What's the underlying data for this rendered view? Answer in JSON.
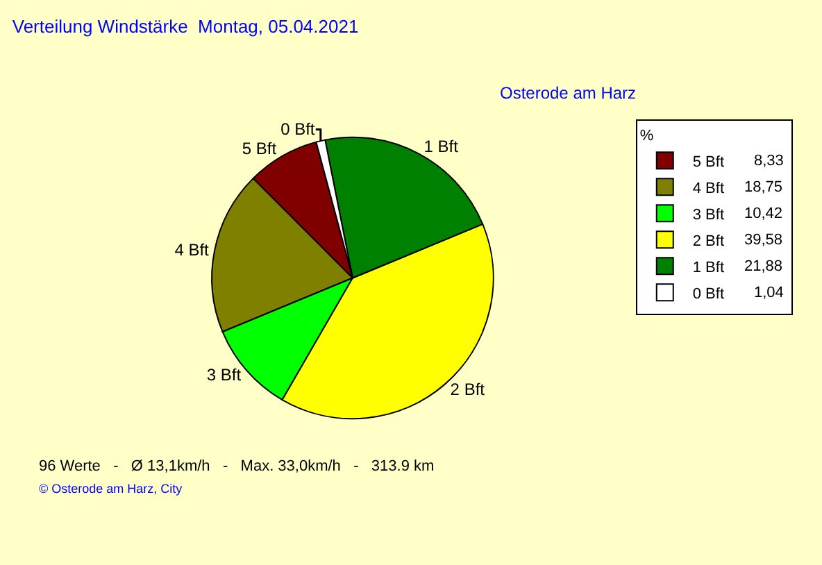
{
  "chart_data": {
    "type": "pie",
    "title": "Verteilung Windstärke  Montag, 05.04.2021",
    "subtitle": "Osterode am Harz",
    "legend_title": "%",
    "categories": [
      "5 Bft",
      "4 Bft",
      "3 Bft",
      "2 Bft",
      "1 Bft",
      "0 Bft"
    ],
    "values": [
      8.33,
      18.75,
      10.42,
      39.58,
      21.88,
      1.04
    ],
    "value_labels": [
      "8,33",
      "18,75",
      "10,42",
      "39,58",
      "21,88",
      "1,04"
    ],
    "colors": [
      "#800000",
      "#808000",
      "#00ff00",
      "#ffff00",
      "#008000",
      "#ffffff"
    ],
    "legend": "top right",
    "annotations": [
      "96 Werte   -   Ø 13,1km/h   -   Max. 33,0km/h   -   313.9 km",
      "© Osterode am Harz, City"
    ]
  }
}
